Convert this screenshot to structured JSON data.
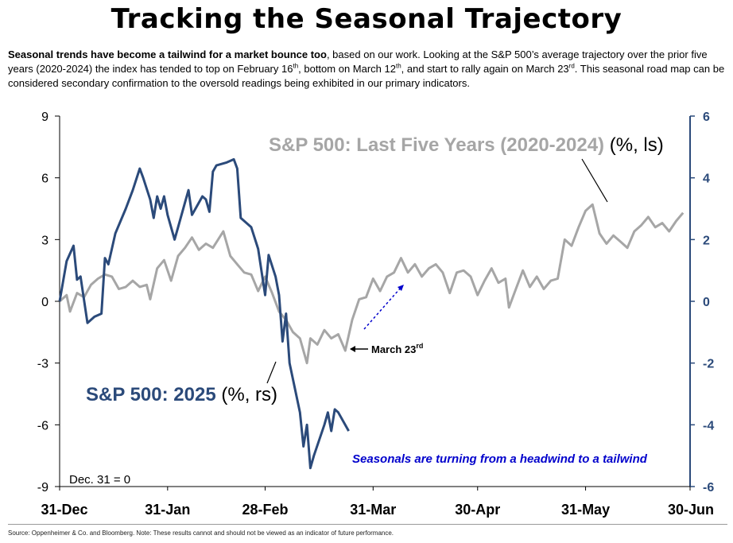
{
  "header": {
    "title": "Tracking the Seasonal Trajectory",
    "intro_bold": "Seasonal trends have become a tailwind for a market bounce too",
    "intro_p1": ", based on our work.  Looking at the S&P 500’s average trajectory over the prior five years (2020-2024) the index has tended to top on February 16",
    "intro_p2": ", bottom on March 12",
    "intro_p3": ", and start to rally again on March 23",
    "intro_p4": ". This seasonal road map can be considered secondary confirmation to the oversold readings being exhibited in our primary indicators.",
    "ordinal": "th",
    "ordinal2": "th",
    "ordinal3": "rd"
  },
  "footer": {
    "source": "Source:  Oppenheimer & Co. and Bloomberg. Note: These results cannot and should not be viewed as an indicator of future performance."
  },
  "colors": {
    "series2025": "#2b4a7a",
    "series5yr": "#a6a6a6",
    "annotation": "#0000cc",
    "axis_right": "#2b4a7a"
  },
  "chart_data": {
    "type": "line",
    "x_type": "date",
    "x_ticks": [
      {
        "date": "2024-12-31",
        "label": "31-Dec"
      },
      {
        "date": "2025-01-31",
        "label": "31-Jan"
      },
      {
        "date": "2025-02-28",
        "label": "28-Feb"
      },
      {
        "date": "2025-03-31",
        "label": "31-Mar"
      },
      {
        "date": "2025-04-30",
        "label": "30-Apr"
      },
      {
        "date": "2025-05-31",
        "label": "31-May"
      },
      {
        "date": "2025-06-30",
        "label": "30-Jun"
      }
    ],
    "xlim": [
      "2024-12-31",
      "2025-06-30"
    ],
    "y_left": {
      "lim": [
        -9,
        9
      ],
      "ticks": [
        9,
        6,
        3,
        0,
        -3,
        -6,
        -9
      ],
      "labels": [
        "9",
        "6",
        "3",
        "0",
        "-3",
        "-6",
        "-9"
      ]
    },
    "y_right": {
      "lim": [
        -6,
        6
      ],
      "ticks": [
        6,
        4,
        2,
        0,
        -2,
        -4,
        -6
      ],
      "labels": [
        "6",
        "4",
        "2",
        "0",
        "-2",
        "-4",
        "-6"
      ]
    },
    "grid": false,
    "series": [
      {
        "name": "S&P 500: Last Five Years (2020-2024) (%, ls)",
        "axis": "left",
        "points": [
          [
            "2024-12-31",
            0.0
          ],
          [
            "2025-01-02",
            0.3
          ],
          [
            "2025-01-03",
            -0.5
          ],
          [
            "2025-01-05",
            0.4
          ],
          [
            "2025-01-07",
            0.2
          ],
          [
            "2025-01-09",
            0.8
          ],
          [
            "2025-01-11",
            1.1
          ],
          [
            "2025-01-13",
            1.3
          ],
          [
            "2025-01-15",
            1.2
          ],
          [
            "2025-01-17",
            0.6
          ],
          [
            "2025-01-19",
            0.7
          ],
          [
            "2025-01-21",
            1.0
          ],
          [
            "2025-01-23",
            0.7
          ],
          [
            "2025-01-25",
            0.8
          ],
          [
            "2025-01-26",
            0.1
          ],
          [
            "2025-01-28",
            1.6
          ],
          [
            "2025-01-30",
            2.0
          ],
          [
            "2025-02-01",
            1.0
          ],
          [
            "2025-02-03",
            2.2
          ],
          [
            "2025-02-05",
            2.6
          ],
          [
            "2025-02-07",
            3.1
          ],
          [
            "2025-02-09",
            2.5
          ],
          [
            "2025-02-11",
            2.8
          ],
          [
            "2025-02-13",
            2.6
          ],
          [
            "2025-02-16",
            3.4
          ],
          [
            "2025-02-18",
            2.2
          ],
          [
            "2025-02-20",
            1.8
          ],
          [
            "2025-02-22",
            1.4
          ],
          [
            "2025-02-24",
            1.3
          ],
          [
            "2025-02-26",
            0.5
          ],
          [
            "2025-02-28",
            1.2
          ],
          [
            "2025-03-02",
            0.4
          ],
          [
            "2025-03-04",
            -0.5
          ],
          [
            "2025-03-06",
            -0.9
          ],
          [
            "2025-03-08",
            -1.5
          ],
          [
            "2025-03-10",
            -1.8
          ],
          [
            "2025-03-12",
            -3.0
          ],
          [
            "2025-03-13",
            -1.8
          ],
          [
            "2025-03-15",
            -2.1
          ],
          [
            "2025-03-17",
            -1.4
          ],
          [
            "2025-03-19",
            -1.8
          ],
          [
            "2025-03-21",
            -1.6
          ],
          [
            "2025-03-23",
            -2.4
          ],
          [
            "2025-03-25",
            -0.9
          ],
          [
            "2025-03-27",
            0.1
          ],
          [
            "2025-03-29",
            0.2
          ],
          [
            "2025-03-31",
            1.1
          ],
          [
            "2025-04-02",
            0.5
          ],
          [
            "2025-04-04",
            1.2
          ],
          [
            "2025-04-06",
            1.4
          ],
          [
            "2025-04-08",
            2.1
          ],
          [
            "2025-04-10",
            1.4
          ],
          [
            "2025-04-12",
            1.8
          ],
          [
            "2025-04-14",
            1.2
          ],
          [
            "2025-04-16",
            1.6
          ],
          [
            "2025-04-18",
            1.8
          ],
          [
            "2025-04-20",
            1.4
          ],
          [
            "2025-04-22",
            0.4
          ],
          [
            "2025-04-24",
            1.4
          ],
          [
            "2025-04-26",
            1.5
          ],
          [
            "2025-04-28",
            1.2
          ],
          [
            "2025-04-30",
            0.3
          ],
          [
            "2025-05-02",
            1.0
          ],
          [
            "2025-05-04",
            1.6
          ],
          [
            "2025-05-06",
            0.9
          ],
          [
            "2025-05-08",
            1.1
          ],
          [
            "2025-05-09",
            -0.3
          ],
          [
            "2025-05-11",
            0.6
          ],
          [
            "2025-05-13",
            1.5
          ],
          [
            "2025-05-15",
            0.7
          ],
          [
            "2025-05-17",
            1.2
          ],
          [
            "2025-05-19",
            0.6
          ],
          [
            "2025-05-21",
            1.0
          ],
          [
            "2025-05-23",
            1.1
          ],
          [
            "2025-05-25",
            3.0
          ],
          [
            "2025-05-27",
            2.7
          ],
          [
            "2025-05-29",
            3.6
          ],
          [
            "2025-05-31",
            4.4
          ],
          [
            "2025-06-02",
            4.7
          ],
          [
            "2025-06-04",
            3.3
          ],
          [
            "2025-06-06",
            2.8
          ],
          [
            "2025-06-08",
            3.2
          ],
          [
            "2025-06-10",
            2.9
          ],
          [
            "2025-06-12",
            2.6
          ],
          [
            "2025-06-14",
            3.4
          ],
          [
            "2025-06-16",
            3.7
          ],
          [
            "2025-06-18",
            4.1
          ],
          [
            "2025-06-20",
            3.6
          ],
          [
            "2025-06-22",
            3.8
          ],
          [
            "2025-06-24",
            3.4
          ],
          [
            "2025-06-26",
            3.9
          ],
          [
            "2025-06-28",
            4.3
          ]
        ]
      },
      {
        "name": "S&P 500: 2025 (%, rs)",
        "axis": "right",
        "points": [
          [
            "2024-12-31",
            0.0
          ],
          [
            "2025-01-02",
            1.3
          ],
          [
            "2025-01-04",
            1.8
          ],
          [
            "2025-01-05",
            0.7
          ],
          [
            "2025-01-06",
            0.8
          ],
          [
            "2025-01-08",
            -0.7
          ],
          [
            "2025-01-10",
            -0.5
          ],
          [
            "2025-01-12",
            -0.4
          ],
          [
            "2025-01-13",
            1.4
          ],
          [
            "2025-01-14",
            1.2
          ],
          [
            "2025-01-16",
            2.2
          ],
          [
            "2025-01-19",
            3.0
          ],
          [
            "2025-01-21",
            3.6
          ],
          [
            "2025-01-23",
            4.3
          ],
          [
            "2025-01-24",
            4.0
          ],
          [
            "2025-01-26",
            3.3
          ],
          [
            "2025-01-27",
            2.7
          ],
          [
            "2025-01-28",
            3.4
          ],
          [
            "2025-01-29",
            3.0
          ],
          [
            "2025-01-30",
            3.4
          ],
          [
            "2025-01-31",
            2.8
          ],
          [
            "2025-02-02",
            2.0
          ],
          [
            "2025-02-03",
            2.4
          ],
          [
            "2025-02-05",
            3.2
          ],
          [
            "2025-02-06",
            3.6
          ],
          [
            "2025-02-07",
            2.8
          ],
          [
            "2025-02-08",
            3.0
          ],
          [
            "2025-02-10",
            3.4
          ],
          [
            "2025-02-11",
            3.3
          ],
          [
            "2025-02-12",
            2.9
          ],
          [
            "2025-02-13",
            4.2
          ],
          [
            "2025-02-14",
            4.4
          ],
          [
            "2025-02-17",
            4.5
          ],
          [
            "2025-02-19",
            4.6
          ],
          [
            "2025-02-20",
            4.3
          ],
          [
            "2025-02-21",
            2.7
          ],
          [
            "2025-02-24",
            2.4
          ],
          [
            "2025-02-26",
            1.7
          ],
          [
            "2025-02-28",
            0.2
          ],
          [
            "2025-03-01",
            1.5
          ],
          [
            "2025-03-03",
            0.8
          ],
          [
            "2025-03-04",
            0.2
          ],
          [
            "2025-03-05",
            -1.3
          ],
          [
            "2025-03-06",
            -0.4
          ],
          [
            "2025-03-07",
            -2.0
          ],
          [
            "2025-03-10",
            -3.6
          ],
          [
            "2025-03-11",
            -4.7
          ],
          [
            "2025-03-12",
            -4.0
          ],
          [
            "2025-03-13",
            -5.4
          ],
          [
            "2025-03-14",
            -5.0
          ],
          [
            "2025-03-17",
            -4.0
          ],
          [
            "2025-03-18",
            -3.6
          ],
          [
            "2025-03-19",
            -4.2
          ],
          [
            "2025-03-20",
            -3.5
          ],
          [
            "2025-03-21",
            -3.6
          ],
          [
            "2025-03-24",
            -4.2
          ]
        ]
      }
    ],
    "labels": {
      "series5yr_label": "S&P 500: Last Five Years (2020-2024) (%, ls)",
      "series5yr_label_a": "S&P 500: Last Five Years (2020-2024)",
      "series5yr_label_b": " (%, ls)",
      "series2025_label_a": "S&P 500: 2025",
      "series2025_label_b": " (%, rs)",
      "march23": "March 23",
      "march23_sup": "rd",
      "seasonal_note": "Seasonals are turning from a headwind to a tailwind",
      "base_note": "Dec. 31 = 0"
    }
  }
}
